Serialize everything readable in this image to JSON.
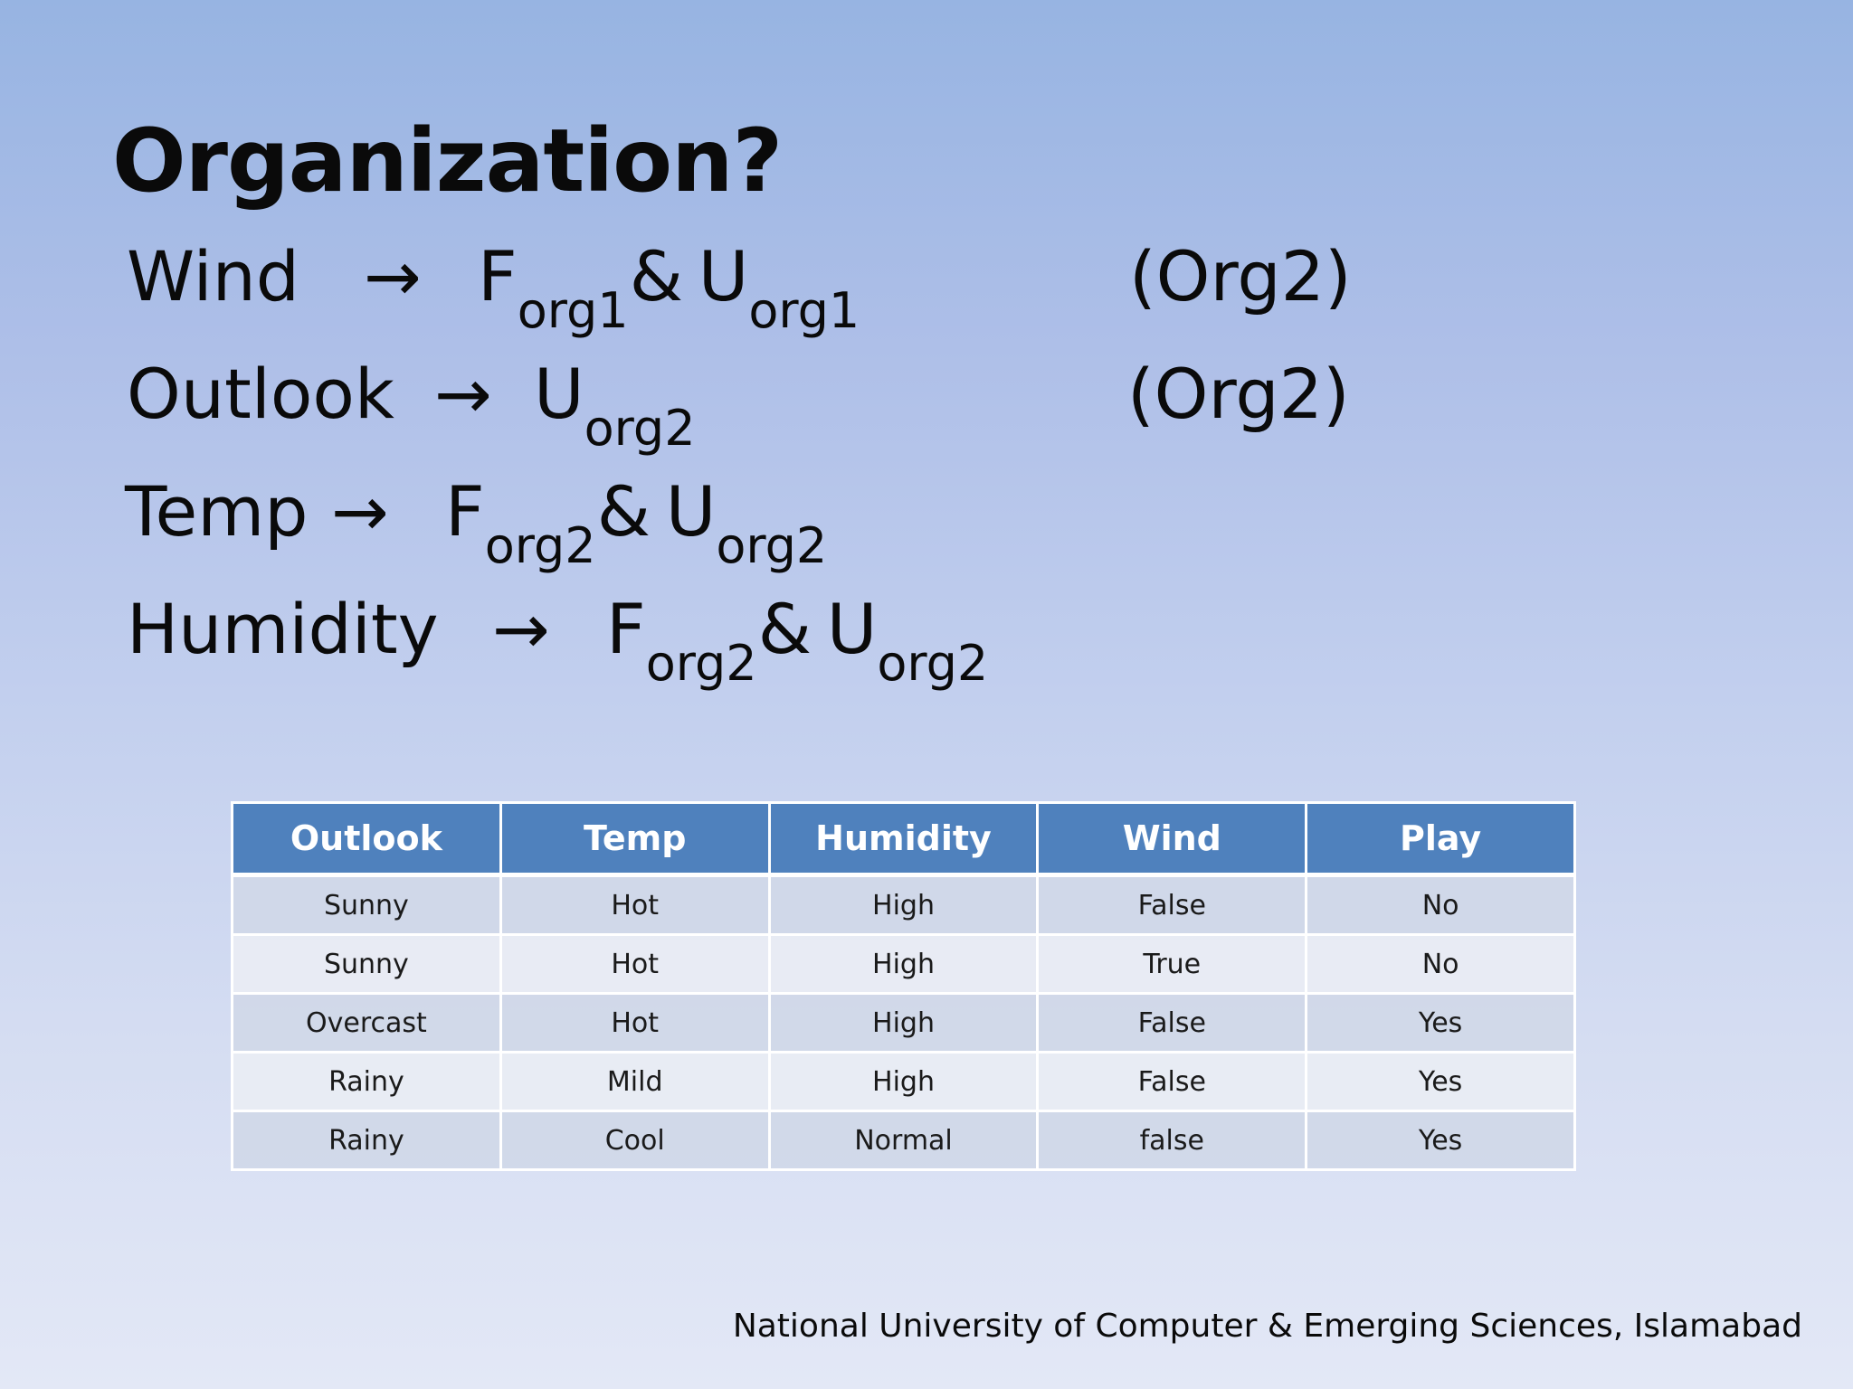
{
  "slide": {
    "title": "Organization?",
    "footer": "National University of Computer & Emerging Sciences, Islamabad"
  },
  "rules": [
    {
      "attr": "Wind",
      "arrow": "→",
      "f": "F",
      "f_sub": "org1",
      "amp": "&",
      "u": "U",
      "u_sub": "org1",
      "note": "(Org2)"
    },
    {
      "attr": "Outlook",
      "arrow": "→",
      "u": "U",
      "u_sub": "org2",
      "note": "(Org2)"
    },
    {
      "attr": "Temp",
      "arrow": "→",
      "f": "F",
      "f_sub": "org2",
      "amp": "&",
      "u": "U",
      "u_sub": "org2"
    },
    {
      "attr": "Humidity",
      "arrow": "→",
      "f": "F",
      "f_sub": "org2",
      "amp": "&",
      "u": "U",
      "u_sub": "org2"
    }
  ],
  "table": {
    "headers": [
      "Outlook",
      "Temp",
      "Humidity",
      "Wind",
      "Play"
    ],
    "rows": [
      [
        "Sunny",
        "Hot",
        "High",
        "False",
        "No"
      ],
      [
        "Sunny",
        "Hot",
        "High",
        "True",
        "No"
      ],
      [
        "Overcast",
        "Hot",
        "High",
        "False",
        "Yes"
      ],
      [
        "Rainy",
        "Mild",
        "High",
        "False",
        "Yes"
      ],
      [
        "Rainy",
        "Cool",
        "Normal",
        "false",
        "Yes"
      ]
    ]
  },
  "colors": {
    "header_bg": "#4f81bd",
    "header_text": "#ffffff",
    "row_odd": "#d0d8e8",
    "row_even": "#e9edf4"
  }
}
